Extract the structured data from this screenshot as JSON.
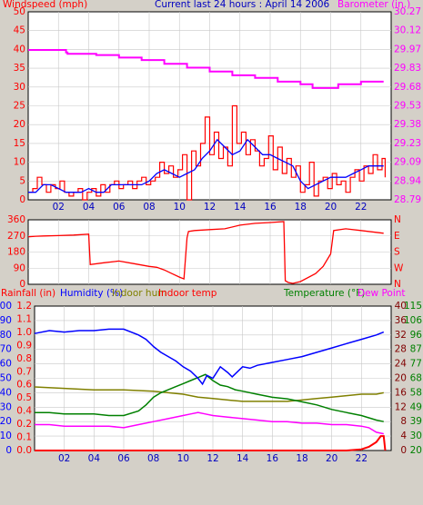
{
  "chart_data": [
    {
      "type": "line",
      "title": "Current last 24 hours : April 14 2006",
      "left_axis_label": "Windspeed (mph)",
      "right_axis_label": "Barometer (in.)",
      "x_ticks": [
        "02",
        "04",
        "06",
        "08",
        "10",
        "12",
        "14",
        "16",
        "18",
        "20",
        "22"
      ],
      "ylim_left": [
        0,
        50
      ],
      "y_ticks_left": [
        "0",
        "5",
        "10",
        "15",
        "20",
        "25",
        "30",
        "35",
        "40",
        "45",
        "50"
      ],
      "ylim_right": [
        28.79,
        30.27
      ],
      "y_ticks_right": [
        "28.79",
        "28.94",
        "29.09",
        "29.23",
        "29.38",
        "29.53",
        "29.68",
        "29.83",
        "29.97",
        "30.12",
        "30.27"
      ],
      "colors": {
        "wind": "#ff0000",
        "wind_avg": "#0000ff",
        "barometer": "#ff00ff",
        "left_text": "#ff0000",
        "right_text": "#ff00ff",
        "title_text": "#0000c0"
      },
      "series": [
        {
          "key": "barometer",
          "x": [
            0,
            0.4,
            2.5,
            2.6,
            4.5,
            6,
            7.5,
            9,
            10.5,
            12,
            13.5,
            15,
            16.5,
            18,
            18.8,
            19.8,
            20.5,
            22,
            23.5
          ],
          "values": [
            29.97,
            29.97,
            29.95,
            29.94,
            29.93,
            29.91,
            29.89,
            29.86,
            29.83,
            29.8,
            29.77,
            29.75,
            29.72,
            29.7,
            29.67,
            29.67,
            29.7,
            29.72,
            29.72
          ]
        },
        {
          "key": "wind",
          "x": [
            0,
            0.3,
            0.6,
            0.9,
            1.2,
            1.5,
            1.8,
            2.1,
            2.4,
            2.7,
            3,
            3.3,
            3.6,
            3.9,
            4.2,
            4.5,
            4.8,
            5.1,
            5.4,
            5.7,
            6,
            6.3,
            6.6,
            6.9,
            7.2,
            7.5,
            7.8,
            8.1,
            8.4,
            8.7,
            9,
            9.3,
            9.6,
            9.9,
            10.2,
            10.5,
            10.8,
            11.1,
            11.4,
            11.7,
            12,
            12.3,
            12.6,
            12.9,
            13.2,
            13.5,
            13.8,
            14.1,
            14.4,
            14.7,
            15,
            15.3,
            15.6,
            15.9,
            16.2,
            16.5,
            16.8,
            17.1,
            17.4,
            17.7,
            18,
            18.3,
            18.6,
            18.9,
            19.2,
            19.5,
            19.8,
            20.1,
            20.4,
            20.7,
            21,
            21.3,
            21.6,
            21.9,
            22.2,
            22.5,
            22.8,
            23.1,
            23.4,
            23.6
          ],
          "values": [
            2,
            3,
            6,
            4,
            2,
            4,
            3,
            5,
            2,
            1,
            2,
            3,
            0,
            2,
            3,
            1,
            4,
            2,
            4,
            5,
            3,
            4,
            5,
            3,
            5,
            6,
            4,
            5,
            6,
            10,
            7,
            9,
            6,
            8,
            12,
            0,
            13,
            9,
            15,
            22,
            12,
            18,
            11,
            14,
            9,
            25,
            15,
            18,
            12,
            16,
            13,
            9,
            11,
            17,
            8,
            14,
            7,
            11,
            6,
            9,
            2,
            4,
            10,
            1,
            5,
            6,
            3,
            7,
            4,
            5,
            2,
            6,
            8,
            5,
            9,
            7,
            12,
            8,
            11,
            6
          ]
        },
        {
          "key": "wind_avg",
          "x": [
            0,
            0.5,
            1,
            1.5,
            2,
            2.5,
            3,
            3.5,
            4,
            4.5,
            5,
            5.5,
            6,
            6.5,
            7,
            7.5,
            8,
            8.5,
            9,
            9.5,
            10,
            10.5,
            11,
            11.5,
            12,
            12.5,
            13,
            13.5,
            14,
            14.5,
            15,
            15.5,
            16,
            16.5,
            17,
            17.5,
            18,
            18.5,
            19,
            19.5,
            20,
            20.5,
            21,
            21.5,
            22,
            22.5,
            23,
            23.5
          ],
          "values": [
            2,
            2,
            4,
            4,
            3,
            2,
            2,
            2,
            3,
            2,
            2,
            4,
            4,
            4,
            4,
            4,
            5,
            7,
            8,
            7,
            6,
            7,
            8,
            11,
            13,
            16,
            14,
            12,
            13,
            16,
            14,
            12,
            12,
            11,
            10,
            9,
            5,
            3,
            4,
            5,
            6,
            6,
            6,
            7,
            8,
            9,
            9,
            9
          ]
        }
      ]
    },
    {
      "type": "line",
      "ylim": [
        0,
        360
      ],
      "y_ticks": [
        "0",
        "90",
        "180",
        "270",
        "360"
      ],
      "direction_labels": [
        "N",
        "W",
        "S",
        "E",
        "N"
      ],
      "series": [
        {
          "key": "wind_direction",
          "x": [
            0,
            0.5,
            1,
            2,
            3,
            4,
            4.1,
            5,
            6,
            7,
            8,
            8.5,
            9,
            9.5,
            10,
            10.3,
            10.5,
            10.6,
            11,
            12,
            13,
            14,
            14.5,
            15,
            16,
            16.9,
            17,
            17.2,
            17.5,
            18,
            19,
            19.5,
            20,
            20.2,
            21,
            22,
            23,
            23.5
          ],
          "values": [
            265,
            268,
            270,
            272,
            275,
            280,
            110,
            120,
            130,
            115,
            100,
            95,
            80,
            60,
            40,
            30,
            260,
            295,
            300,
            305,
            310,
            330,
            335,
            340,
            345,
            350,
            20,
            10,
            5,
            15,
            60,
            100,
            170,
            300,
            310,
            300,
            290,
            285
          ]
        }
      ]
    },
    {
      "type": "line",
      "legend": [
        "Rainfall (in)",
        "Humidity (%)",
        "Indoor hum",
        "Indoor temp",
        "Temperature (°F)",
        "Dew Point"
      ],
      "colors": {
        "rain": "#ff0000",
        "humidity": "#0000ff",
        "indoor_hum": "#808000",
        "indoor_temp": "#ff0000",
        "temperature": "#008000",
        "dew_point": "#ff00ff"
      },
      "rain_axis": {
        "ylim": [
          0,
          1.2
        ],
        "ticks": [
          "0.0",
          "0.1",
          "0.2",
          "0.4",
          "0.5",
          "0.6",
          "0.7",
          "0.8",
          "0.9",
          "1.0",
          "1.1",
          "1.2"
        ]
      },
      "humidity_axis": {
        "ylim": [
          0,
          100
        ],
        "ticks": [
          "0",
          "10",
          "20",
          "30",
          "40",
          "50",
          "60",
          "70",
          "80",
          "90",
          "100"
        ]
      },
      "indoor_temp_axis": {
        "ylim": [
          0,
          40
        ],
        "ticks": [
          "0",
          "4",
          "8",
          "12",
          "16",
          "20",
          "24",
          "28",
          "32",
          "36",
          "40"
        ]
      },
      "temperature_axis": {
        "ylim": [
          20,
          115
        ],
        "ticks": [
          "20",
          "30",
          "39",
          "49",
          "58",
          "68",
          "77",
          "87",
          "96",
          "106",
          "115"
        ]
      },
      "series": [
        {
          "key": "humidity",
          "x": [
            0,
            1,
            2,
            3,
            4,
            5,
            6,
            7,
            7.5,
            8,
            8.5,
            9,
            9.5,
            10,
            10.5,
            11,
            11.3,
            11.6,
            12,
            12.5,
            13,
            13.3,
            13.7,
            14,
            14.5,
            15,
            16,
            17,
            18,
            19,
            20,
            21,
            22,
            23,
            23.5
          ],
          "values": [
            81,
            83,
            82,
            83,
            83,
            84,
            84,
            80,
            77,
            72,
            68,
            65,
            62,
            58,
            55,
            50,
            46,
            52,
            50,
            58,
            54,
            51,
            55,
            58,
            57,
            59,
            61,
            63,
            65,
            68,
            71,
            74,
            77,
            80,
            82
          ]
        },
        {
          "key": "indoor_hum",
          "x": [
            0,
            2,
            4,
            6,
            8,
            9,
            10,
            11,
            12,
            13,
            14,
            15,
            16,
            17,
            18,
            19,
            20,
            21,
            22,
            23,
            23.5
          ],
          "values": [
            44,
            43,
            42,
            42,
            41,
            40,
            39,
            37,
            36,
            35,
            34,
            34,
            34,
            34,
            35,
            36,
            37,
            38,
            39,
            39,
            40
          ]
        },
        {
          "key": "temperature",
          "x": [
            0,
            1,
            2,
            3,
            4,
            5,
            6,
            7,
            7.5,
            8,
            8.5,
            9,
            9.5,
            10,
            10.5,
            11,
            11.5,
            12,
            12.5,
            13,
            13.5,
            14,
            15,
            16,
            17,
            18,
            19,
            20,
            21,
            22,
            23,
            23.5
          ],
          "values": [
            45,
            45,
            44,
            44,
            44,
            43,
            43,
            46,
            50,
            55,
            58,
            60,
            62,
            64,
            66,
            68,
            70,
            66,
            63,
            62,
            60,
            59,
            57,
            55,
            54,
            52,
            50,
            47,
            45,
            43,
            40,
            39
          ]
        },
        {
          "key": "dew_point",
          "x": [
            0,
            1,
            2,
            3,
            4,
            5,
            6,
            7,
            8,
            9,
            10,
            10.5,
            11,
            11.5,
            12,
            13,
            14,
            15,
            16,
            17,
            18,
            19,
            20,
            21,
            22,
            22.5,
            23,
            23.5
          ],
          "values": [
            37,
            37,
            36,
            36,
            36,
            36,
            35,
            37,
            39,
            41,
            43,
            44,
            45,
            44,
            43,
            42,
            41,
            40,
            39,
            39,
            38,
            38,
            37,
            37,
            36,
            35,
            32,
            31
          ]
        },
        {
          "key": "rain",
          "x": [
            0,
            21,
            22,
            22.5,
            23,
            23.3,
            23.5,
            23.6
          ],
          "values": [
            0,
            0,
            0.01,
            0.03,
            0.07,
            0.12,
            0.12,
            0.0
          ]
        }
      ]
    }
  ]
}
